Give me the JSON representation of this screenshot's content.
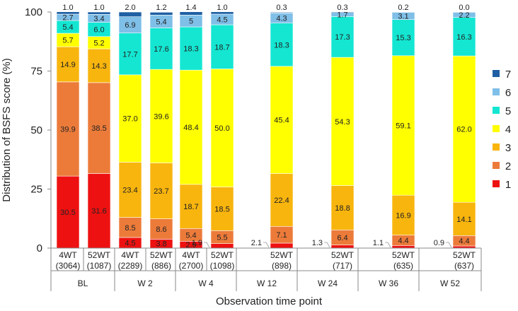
{
  "chart_data": {
    "type": "bar",
    "stacked": true,
    "title": "",
    "ylabel": "Distribution of BSFS score (%)",
    "xlabel": "Observation time point",
    "ylim": [
      0,
      100
    ],
    "yticks": [
      "0",
      "25",
      "50",
      "75",
      "100"
    ],
    "legend_position": "right",
    "series": [
      {
        "name": "1",
        "color": "#ee1111"
      },
      {
        "name": "2",
        "color": "#ec7b3a"
      },
      {
        "name": "3",
        "color": "#f8b50e"
      },
      {
        "name": "4",
        "color": "#ffff00"
      },
      {
        "name": "5",
        "color": "#14e6d2"
      },
      {
        "name": "6",
        "color": "#7fbfe8"
      },
      {
        "name": "7",
        "color": "#1f5fa3"
      }
    ],
    "bars": [
      {
        "label1": "4WT",
        "label2": "(3064)",
        "values": [
          30.5,
          39.9,
          14.9,
          5.7,
          5.4,
          2.7,
          1.0
        ],
        "texts": [
          "30.5",
          "39.9",
          "14.9",
          "5.7",
          "5.4",
          "2.7",
          "1.0"
        ]
      },
      {
        "label1": "52WT",
        "label2": "(1087)",
        "values": [
          31.6,
          38.5,
          14.3,
          5.2,
          6.0,
          3.4,
          1.0
        ],
        "texts": [
          "31.6",
          "38.5",
          "14.3",
          "5.2",
          "6.0",
          "3.4",
          "1.0"
        ]
      },
      {
        "label1": "4WT",
        "label2": "(2289)",
        "values": [
          4.5,
          8.5,
          23.4,
          37.0,
          17.7,
          6.9,
          2.0
        ],
        "texts": [
          "4.5",
          "8.5",
          "23.4",
          "37.0",
          "17.7",
          "6.9",
          "2.0"
        ]
      },
      {
        "label1": "52WT",
        "label2": "(886)",
        "values": [
          3.8,
          8.6,
          23.7,
          39.6,
          17.6,
          5.4,
          1.2
        ],
        "texts": [
          "3.8",
          "8.6",
          "23.7",
          "39.6",
          "17.6",
          "5.4",
          "1.2"
        ]
      },
      {
        "label1": "4WT",
        "label2": "(2700)",
        "values": [
          2.9,
          5.4,
          18.7,
          48.4,
          18.3,
          5.0,
          1.4
        ],
        "texts": [
          "2.9",
          "5.4",
          "18.7",
          "48.4",
          "18.3",
          "5",
          "1.4"
        ]
      },
      {
        "label1": "52WT",
        "label2": "(1098)",
        "values": [
          1.9,
          5.5,
          18.5,
          50.0,
          18.7,
          4.5,
          1.0
        ],
        "texts": [
          "1.9",
          "5.5",
          "18.5",
          "50.0",
          "18.7",
          "4.5",
          "1.0"
        ]
      },
      {
        "label1": "52WT",
        "label2": "(898)",
        "values": [
          2.1,
          7.1,
          22.4,
          45.4,
          18.3,
          4.3,
          0.3
        ],
        "texts": [
          "2.1",
          "7.1",
          "22.4",
          "45.4",
          "18.3",
          "4.3",
          "0.3"
        ]
      },
      {
        "label1": "52WT",
        "label2": "(717)",
        "values": [
          1.3,
          6.4,
          18.8,
          54.3,
          17.3,
          1.7,
          0.3
        ],
        "texts": [
          "1.3",
          "6.4",
          "18.8",
          "54.3",
          "17.3",
          "1.7",
          "0.3"
        ]
      },
      {
        "label1": "52WT",
        "label2": "(635)",
        "values": [
          1.1,
          4.4,
          16.9,
          59.1,
          15.3,
          3.1,
          0.2
        ],
        "texts": [
          "1.1",
          "4.4",
          "16.9",
          "59.1",
          "15.3",
          "3.1",
          "0.2"
        ]
      },
      {
        "label1": "52WT",
        "label2": "(637)",
        "values": [
          0.9,
          4.4,
          14.1,
          62.0,
          16.3,
          2.2,
          0.0
        ],
        "texts": [
          "0.9",
          "4.4",
          "14.1",
          "62.0",
          "16.3",
          "2.2",
          "0.0"
        ]
      }
    ],
    "groups": [
      {
        "label": "BL",
        "bar_count": 2
      },
      {
        "label": "W 2",
        "bar_count": 2
      },
      {
        "label": "W 4",
        "bar_count": 2
      },
      {
        "label": "W 12",
        "bar_count": 1
      },
      {
        "label": "W 24",
        "bar_count": 1
      },
      {
        "label": "W 36",
        "bar_count": 1
      },
      {
        "label": "W 52",
        "bar_count": 1
      }
    ]
  }
}
